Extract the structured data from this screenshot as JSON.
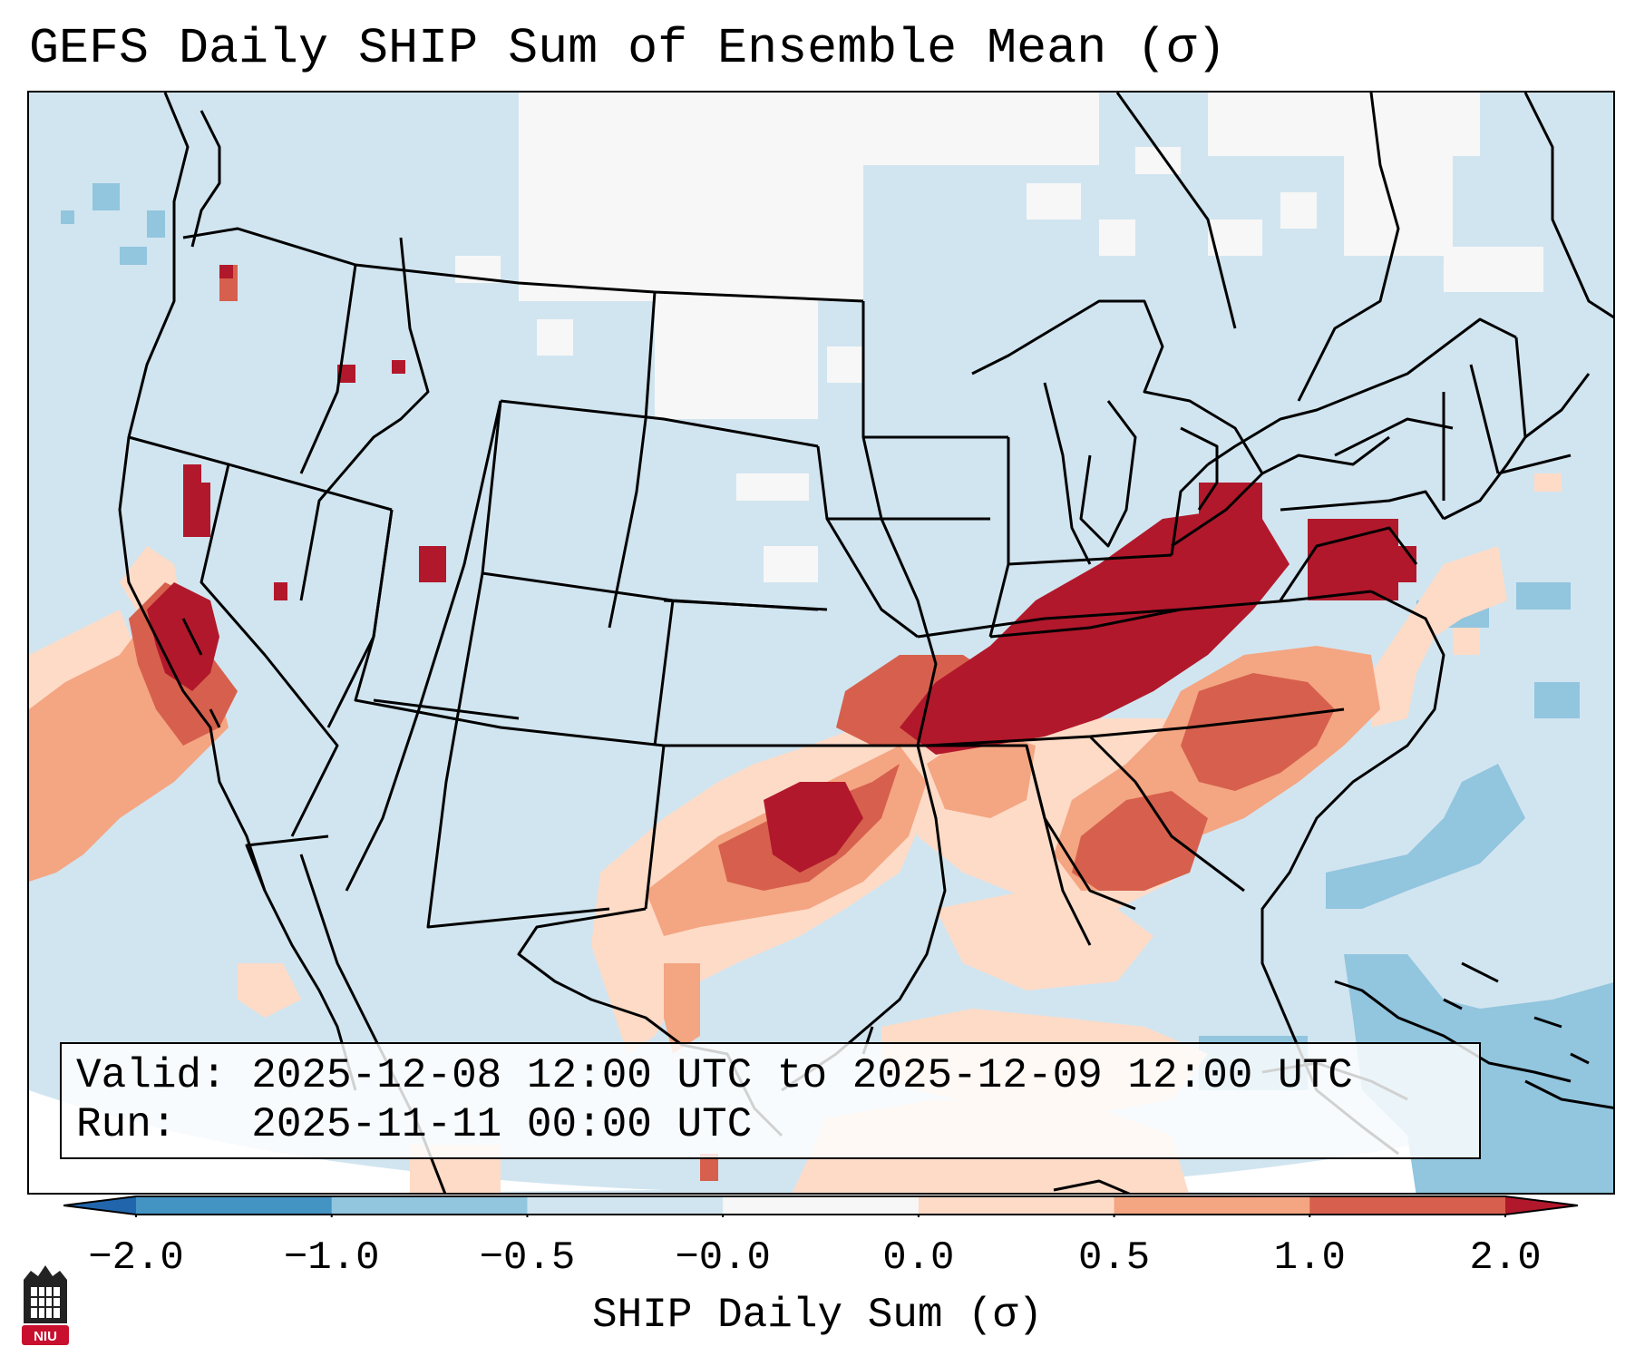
{
  "title": "GEFS Daily SHIP Sum of Ensemble Mean (σ)",
  "info_box": {
    "valid_line": "Valid: 2025-12-08 12:00 UTC to 2025-12-09 12:00 UTC",
    "run_line": "Run:   2025-11-11 00:00 UTC"
  },
  "colorbar": {
    "label": "SHIP Daily Sum (σ)",
    "ticks": [
      "−2.0",
      "−1.0",
      "−0.5",
      "−0.0",
      "0.0",
      "0.5",
      "1.0",
      "2.0"
    ],
    "bins": [
      {
        "range": "< −2.0",
        "color": "#2166ac"
      },
      {
        "range": "−2.0 to −1.0",
        "color": "#4393c3"
      },
      {
        "range": "−1.0 to −0.5",
        "color": "#92c5de"
      },
      {
        "range": "−0.5 to −0.0",
        "color": "#d1e5f0"
      },
      {
        "range": "−0.0 to 0.0",
        "color": "#f7f7f7"
      },
      {
        "range": "0.0 to 0.5",
        "color": "#fddbc7"
      },
      {
        "range": "0.5 to 1.0",
        "color": "#f4a582"
      },
      {
        "range": "1.0 to 2.0",
        "color": "#d6604d"
      },
      {
        "range": "> 2.0",
        "color": "#b2182b"
      }
    ]
  },
  "map": {
    "region": "Contiguous United States",
    "anomaly_areas": [
      {
        "area": "Ohio Valley – Mid-South band (Arkansas to Pennsylvania)",
        "level": "> 2.0"
      },
      {
        "area": "Oklahoma / North Texas",
        "level": "1.0 to 2.0"
      },
      {
        "area": "Georgia / South Carolina / North Carolina",
        "level": "0.5 to 1.0"
      },
      {
        "area": "Central California coast",
        "level": "1.0 to 2.0"
      },
      {
        "area": "Northern Plains / Canadian border",
        "level": "−0.0 to 0.0"
      },
      {
        "area": "Western Atlantic near Bahamas",
        "level": "−1.0 to −0.5"
      }
    ]
  },
  "logo": {
    "text": "NIU"
  }
}
